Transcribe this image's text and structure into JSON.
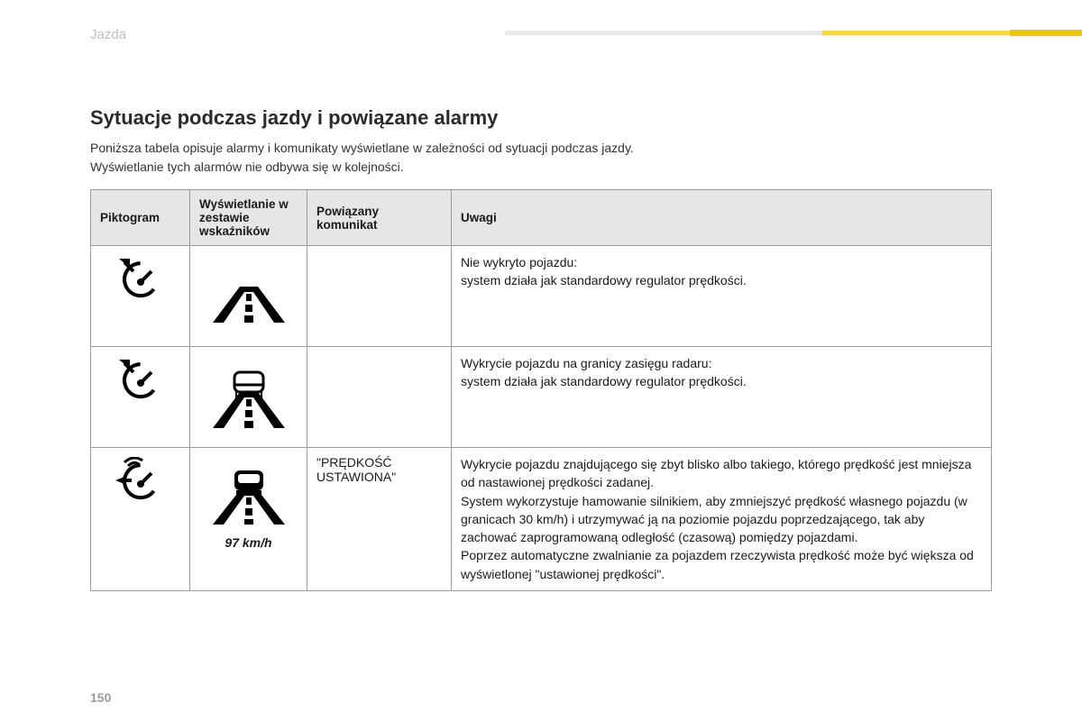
{
  "section_label": "Jazda",
  "page_number": "150",
  "heading": "Sytuacje podczas jazdy i powiązane alarmy",
  "intro_line1": "Poniższa tabela opisuje alarmy i komunikaty wyświetlane w zależności od sytuacji podczas jazdy.",
  "intro_line2": "Wyświetlanie tych alarmów nie odbywa się w kolejności.",
  "table": {
    "headers": {
      "pictogram": "Piktogram",
      "display": "Wyświetlanie w zestawie wskaźników",
      "message": "Powiązany komunikat",
      "notes": "Uwagi"
    },
    "rows": [
      {
        "message": "",
        "notes": "Nie wykryto pojazdu:\nsystem działa jak standardowy regulator prędkości."
      },
      {
        "message": "",
        "notes": "Wykrycie pojazdu na granicy zasięgu radaru:\nsystem działa jak standardowy regulator prędkości."
      },
      {
        "message": "\"PRĘDKOŚĆ USTAWIONA\"",
        "speed_text": "97 km/h",
        "notes": "Wykrycie pojazdu znajdującego się zbyt blisko albo takiego, którego prędkość jest mniejsza od nastawionej prędkości zadanej.\nSystem wykorzystuje hamowanie silnikiem, aby zmniejszyć prędkość własnego pojazdu (w granicach 30 km/h) i utrzymywać ją na poziomie pojazdu poprzedzającego, tak aby zachować zaprogramowaną odległość (czasową) pomiędzy pojazdami.\nPoprzez automatyczne zwalnianie za pojazdem rzeczywista prędkość może być większa od wyświetlonej \"ustawionej prędkości\"."
      }
    ]
  },
  "colors": {
    "header_bg": "#e6e6e6",
    "border": "#9a9a9a",
    "accent_yellow": "#f5c400",
    "text": "#1a1a1a",
    "muted": "#bdbdbd"
  }
}
